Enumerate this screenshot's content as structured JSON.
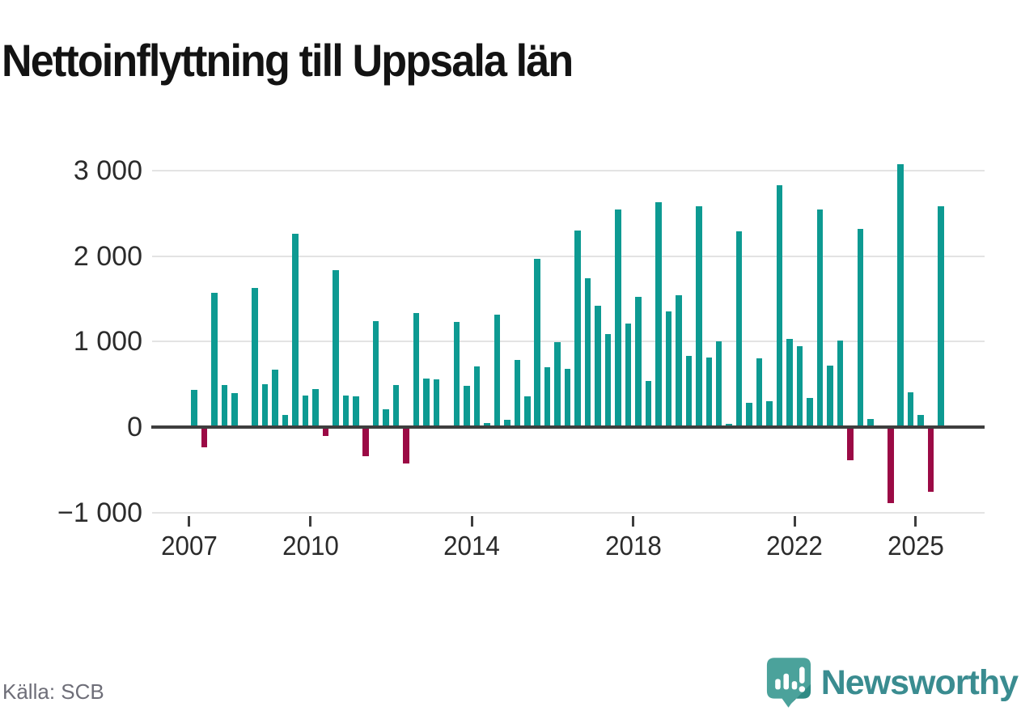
{
  "source": {
    "label": "Källa: SCB"
  },
  "branding": {
    "name": "Newsworthy",
    "icon": "newsworthy-speech-bubble-barchart-icon"
  },
  "chart_data": {
    "type": "bar",
    "title": "Nettoinflyttning till Uppsala län",
    "xlabel": "",
    "ylabel": "",
    "x_start": "2007 Q1",
    "x_freq": "quarterly",
    "x_end": "2025 Q3",
    "values": [
      440,
      -240,
      1570,
      490,
      400,
      0,
      1630,
      500,
      670,
      140,
      2260,
      370,
      445,
      -105,
      1840,
      370,
      360,
      -340,
      1240,
      210,
      490,
      -430,
      1330,
      570,
      560,
      0,
      1230,
      480,
      710,
      50,
      1320,
      85,
      790,
      360,
      1970,
      700,
      990,
      680,
      2300,
      1740,
      1420,
      1090,
      2550,
      1210,
      1520,
      540,
      2630,
      1350,
      1540,
      830,
      2580,
      810,
      1000,
      40,
      2290,
      280,
      800,
      300,
      2830,
      1030,
      950,
      340,
      2550,
      720,
      1010,
      -390,
      2320,
      95,
      0,
      -890,
      3080,
      410,
      140,
      -760,
      2580
    ],
    "yticks": [
      {
        "value": 3000,
        "label": "3 000"
      },
      {
        "value": 2000,
        "label": "2 000"
      },
      {
        "value": 1000,
        "label": "1 000"
      },
      {
        "value": 0,
        "label": "0"
      },
      {
        "value": -1000,
        "label": "−1 000"
      }
    ],
    "xticks": [
      {
        "year": 2007,
        "label": "2007"
      },
      {
        "year": 2010,
        "label": "2010"
      },
      {
        "year": 2014,
        "label": "2014"
      },
      {
        "year": 2018,
        "label": "2018"
      },
      {
        "year": 2022,
        "label": "2022"
      },
      {
        "year": 2025,
        "label": "2025"
      }
    ],
    "ylim": [
      -1000,
      3200
    ],
    "grid": "horizontal",
    "legend": "none",
    "colors": {
      "positive": "#0d9a92",
      "negative": "#9b0a45"
    }
  }
}
